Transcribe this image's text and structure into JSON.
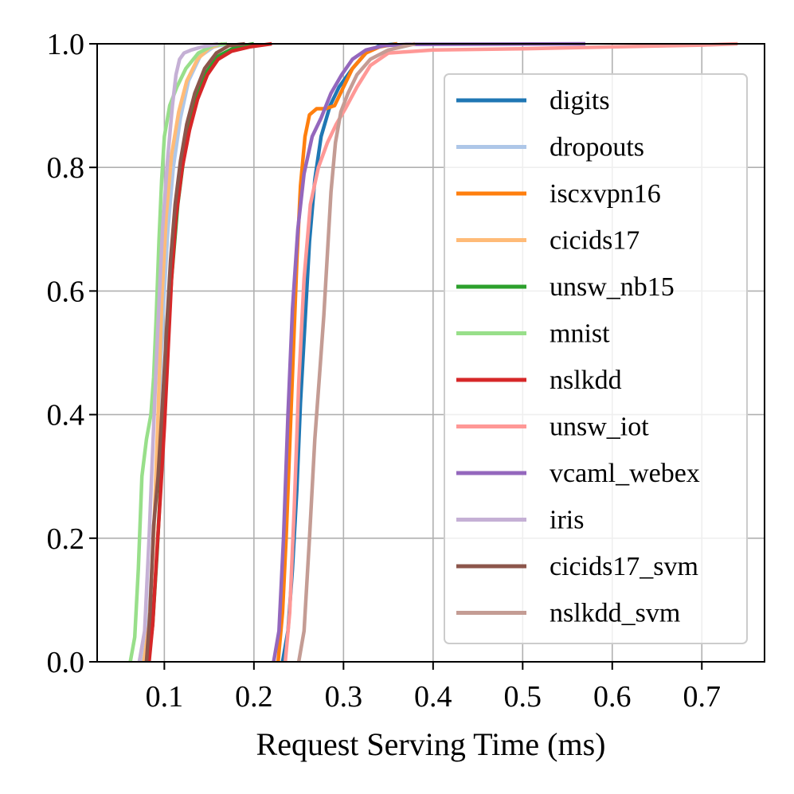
{
  "chart_data": {
    "type": "line",
    "title": "",
    "xlabel": "Request Serving Time (ms)",
    "ylabel": "",
    "xlim": [
      0.025,
      0.77
    ],
    "ylim": [
      0.0,
      1.0
    ],
    "xticks": [
      0.1,
      0.2,
      0.3,
      0.4,
      0.5,
      0.6,
      0.7
    ],
    "xtick_labels": [
      "0.1",
      "0.2",
      "0.3",
      "0.4",
      "0.5",
      "0.6",
      "0.7"
    ],
    "yticks": [
      0.0,
      0.2,
      0.4,
      0.6,
      0.8,
      1.0
    ],
    "ytick_labels": [
      "0.0",
      "0.2",
      "0.4",
      "0.6",
      "0.8",
      "1.0"
    ],
    "grid": true,
    "legend_position": "right",
    "series": [
      {
        "name": "digits",
        "color": "#1f77b4",
        "points": [
          [
            0.232,
            0.0
          ],
          [
            0.238,
            0.05
          ],
          [
            0.243,
            0.15
          ],
          [
            0.248,
            0.28
          ],
          [
            0.252,
            0.42
          ],
          [
            0.257,
            0.55
          ],
          [
            0.262,
            0.68
          ],
          [
            0.268,
            0.78
          ],
          [
            0.275,
            0.85
          ],
          [
            0.285,
            0.9
          ],
          [
            0.295,
            0.93
          ],
          [
            0.31,
            0.96
          ],
          [
            0.325,
            0.985
          ],
          [
            0.34,
            0.997
          ],
          [
            0.36,
            1.0
          ]
        ]
      },
      {
        "name": "dropouts",
        "color": "#aec7e8",
        "points": [
          [
            0.076,
            0.0
          ],
          [
            0.082,
            0.05
          ],
          [
            0.088,
            0.2
          ],
          [
            0.093,
            0.38
          ],
          [
            0.098,
            0.55
          ],
          [
            0.104,
            0.7
          ],
          [
            0.11,
            0.8
          ],
          [
            0.118,
            0.88
          ],
          [
            0.127,
            0.94
          ],
          [
            0.14,
            0.98
          ],
          [
            0.155,
            0.995
          ],
          [
            0.17,
            1.0
          ]
        ]
      },
      {
        "name": "iscxvpn16",
        "color": "#ff7f0e",
        "points": [
          [
            0.227,
            0.0
          ],
          [
            0.232,
            0.08
          ],
          [
            0.236,
            0.2
          ],
          [
            0.24,
            0.35
          ],
          [
            0.244,
            0.5
          ],
          [
            0.248,
            0.65
          ],
          [
            0.252,
            0.77
          ],
          [
            0.257,
            0.85
          ],
          [
            0.262,
            0.885
          ],
          [
            0.27,
            0.895
          ],
          [
            0.28,
            0.895
          ],
          [
            0.29,
            0.9
          ],
          [
            0.3,
            0.93
          ],
          [
            0.31,
            0.96
          ],
          [
            0.325,
            0.985
          ],
          [
            0.34,
            0.995
          ],
          [
            0.36,
            1.0
          ]
        ]
      },
      {
        "name": "cicids17",
        "color": "#ffbb78",
        "points": [
          [
            0.077,
            0.0
          ],
          [
            0.083,
            0.06
          ],
          [
            0.088,
            0.2
          ],
          [
            0.093,
            0.4
          ],
          [
            0.097,
            0.58
          ],
          [
            0.102,
            0.72
          ],
          [
            0.108,
            0.82
          ],
          [
            0.116,
            0.89
          ],
          [
            0.125,
            0.94
          ],
          [
            0.137,
            0.975
          ],
          [
            0.15,
            0.993
          ],
          [
            0.165,
            1.0
          ]
        ]
      },
      {
        "name": "unsw_nb15",
        "color": "#2ca02c",
        "points": [
          [
            0.082,
            0.0
          ],
          [
            0.087,
            0.06
          ],
          [
            0.092,
            0.18
          ],
          [
            0.097,
            0.32
          ],
          [
            0.102,
            0.48
          ],
          [
            0.108,
            0.62
          ],
          [
            0.115,
            0.74
          ],
          [
            0.123,
            0.83
          ],
          [
            0.133,
            0.9
          ],
          [
            0.145,
            0.95
          ],
          [
            0.16,
            0.98
          ],
          [
            0.18,
            0.995
          ],
          [
            0.2,
            1.0
          ]
        ]
      },
      {
        "name": "mnist",
        "color": "#98df8a",
        "points": [
          [
            0.062,
            0.0
          ],
          [
            0.067,
            0.04
          ],
          [
            0.071,
            0.15
          ],
          [
            0.075,
            0.3
          ],
          [
            0.08,
            0.36
          ],
          [
            0.085,
            0.4
          ],
          [
            0.088,
            0.46
          ],
          [
            0.091,
            0.56
          ],
          [
            0.094,
            0.68
          ],
          [
            0.097,
            0.78
          ],
          [
            0.1,
            0.85
          ],
          [
            0.106,
            0.9
          ],
          [
            0.114,
            0.93
          ],
          [
            0.124,
            0.96
          ],
          [
            0.138,
            0.985
          ],
          [
            0.155,
            0.998
          ],
          [
            0.17,
            1.0
          ]
        ]
      },
      {
        "name": "nslkdd",
        "color": "#d62728",
        "points": [
          [
            0.083,
            0.0
          ],
          [
            0.087,
            0.06
          ],
          [
            0.091,
            0.16
          ],
          [
            0.096,
            0.28
          ],
          [
            0.1,
            0.38
          ],
          [
            0.104,
            0.5
          ],
          [
            0.108,
            0.62
          ],
          [
            0.113,
            0.72
          ],
          [
            0.12,
            0.8
          ],
          [
            0.128,
            0.86
          ],
          [
            0.137,
            0.91
          ],
          [
            0.148,
            0.95
          ],
          [
            0.16,
            0.975
          ],
          [
            0.175,
            0.988
          ],
          [
            0.195,
            0.995
          ],
          [
            0.22,
            1.0
          ]
        ]
      },
      {
        "name": "unsw_iot",
        "color": "#ff9896",
        "points": [
          [
            0.235,
            0.0
          ],
          [
            0.24,
            0.08
          ],
          [
            0.245,
            0.25
          ],
          [
            0.25,
            0.45
          ],
          [
            0.256,
            0.62
          ],
          [
            0.263,
            0.74
          ],
          [
            0.272,
            0.8
          ],
          [
            0.282,
            0.84
          ],
          [
            0.292,
            0.87
          ],
          [
            0.302,
            0.895
          ],
          [
            0.315,
            0.93
          ],
          [
            0.33,
            0.965
          ],
          [
            0.35,
            0.985
          ],
          [
            0.4,
            0.99
          ],
          [
            0.5,
            0.992
          ],
          [
            0.6,
            0.995
          ],
          [
            0.7,
            0.998
          ],
          [
            0.74,
            1.0
          ]
        ]
      },
      {
        "name": "vcaml_webex",
        "color": "#9467bd",
        "points": [
          [
            0.222,
            0.0
          ],
          [
            0.228,
            0.05
          ],
          [
            0.233,
            0.2
          ],
          [
            0.238,
            0.4
          ],
          [
            0.243,
            0.57
          ],
          [
            0.249,
            0.7
          ],
          [
            0.256,
            0.79
          ],
          [
            0.265,
            0.85
          ],
          [
            0.275,
            0.88
          ],
          [
            0.286,
            0.92
          ],
          [
            0.298,
            0.95
          ],
          [
            0.31,
            0.975
          ],
          [
            0.325,
            0.99
          ],
          [
            0.345,
            0.997
          ],
          [
            0.37,
            0.999
          ],
          [
            0.57,
            1.0
          ]
        ]
      },
      {
        "name": "iris",
        "color": "#c5b0d5",
        "points": [
          [
            0.072,
            0.0
          ],
          [
            0.078,
            0.05
          ],
          [
            0.083,
            0.2
          ],
          [
            0.088,
            0.38
          ],
          [
            0.093,
            0.55
          ],
          [
            0.098,
            0.7
          ],
          [
            0.104,
            0.82
          ],
          [
            0.109,
            0.9
          ],
          [
            0.113,
            0.95
          ],
          [
            0.117,
            0.975
          ],
          [
            0.122,
            0.985
          ],
          [
            0.13,
            0.99
          ],
          [
            0.142,
            0.995
          ],
          [
            0.16,
            1.0
          ]
        ]
      },
      {
        "name": "cicids17_svm",
        "color": "#8c564b",
        "points": [
          [
            0.08,
            0.0
          ],
          [
            0.084,
            0.08
          ],
          [
            0.088,
            0.22
          ],
          [
            0.093,
            0.3
          ],
          [
            0.098,
            0.42
          ],
          [
            0.103,
            0.55
          ],
          [
            0.107,
            0.65
          ],
          [
            0.112,
            0.74
          ],
          [
            0.118,
            0.81
          ],
          [
            0.125,
            0.87
          ],
          [
            0.134,
            0.92
          ],
          [
            0.145,
            0.96
          ],
          [
            0.158,
            0.985
          ],
          [
            0.172,
            0.997
          ],
          [
            0.19,
            1.0
          ]
        ]
      },
      {
        "name": "nslkdd_svm",
        "color": "#c49c94",
        "points": [
          [
            0.25,
            0.0
          ],
          [
            0.256,
            0.05
          ],
          [
            0.262,
            0.2
          ],
          [
            0.268,
            0.36
          ],
          [
            0.273,
            0.46
          ],
          [
            0.278,
            0.56
          ],
          [
            0.282,
            0.66
          ],
          [
            0.286,
            0.76
          ],
          [
            0.291,
            0.84
          ],
          [
            0.297,
            0.89
          ],
          [
            0.305,
            0.92
          ],
          [
            0.315,
            0.95
          ],
          [
            0.33,
            0.975
          ],
          [
            0.35,
            0.99
          ],
          [
            0.38,
            1.0
          ]
        ]
      }
    ]
  }
}
